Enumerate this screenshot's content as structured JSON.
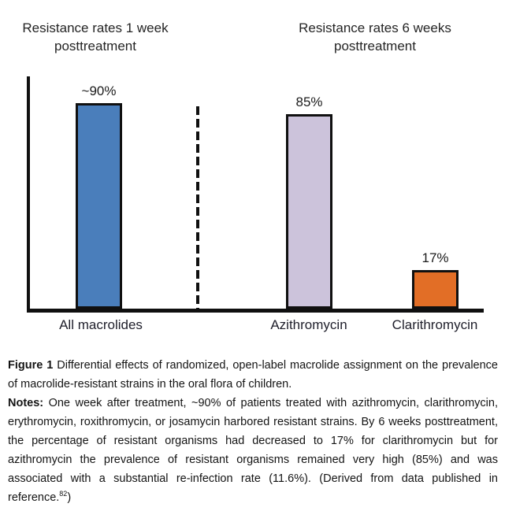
{
  "chart_data": {
    "type": "bar",
    "categories": [
      "All macrolides",
      "Azithromycin",
      "Clarithromycin"
    ],
    "values": [
      90,
      85,
      17
    ],
    "value_labels": [
      "~90%",
      "85%",
      "17%"
    ],
    "group_titles": [
      "Resistance rates 1 week posttreatment",
      "Resistance rates 6 weeks posttreatment"
    ],
    "bar_colors": [
      "#4A7EBB",
      "#CCC3DB",
      "#E26E26"
    ],
    "axis_color": "#101010",
    "ylim": [
      0,
      100
    ],
    "grid": false,
    "legend": "none",
    "separator": "dashed-vertical-line-between-groups",
    "xlabel": "",
    "ylabel": ""
  },
  "caption": {
    "figure_label": "Figure 1",
    "figure_text": " Differential effects of randomized, open-label macrolide assignment on the prevalence of macrolide-resistant strains in the oral flora of children.",
    "notes_label": "Notes:",
    "notes_text": " One week after treatment, ~90% of patients treated with azithromycin, clarithromycin, erythromycin, roxithromycin, or josamycin harbored resistant strains. By 6 weeks posttreatment, the percentage of resistant organisms had decreased to 17% for clarithromycin but for azithromycin the prevalence of resistant organisms remained very high (85%) and was associated with a substantial re-infection rate (11.6%). (Derived from data published in reference.",
    "notes_ref_superscript": "82",
    "notes_suffix": ")"
  }
}
